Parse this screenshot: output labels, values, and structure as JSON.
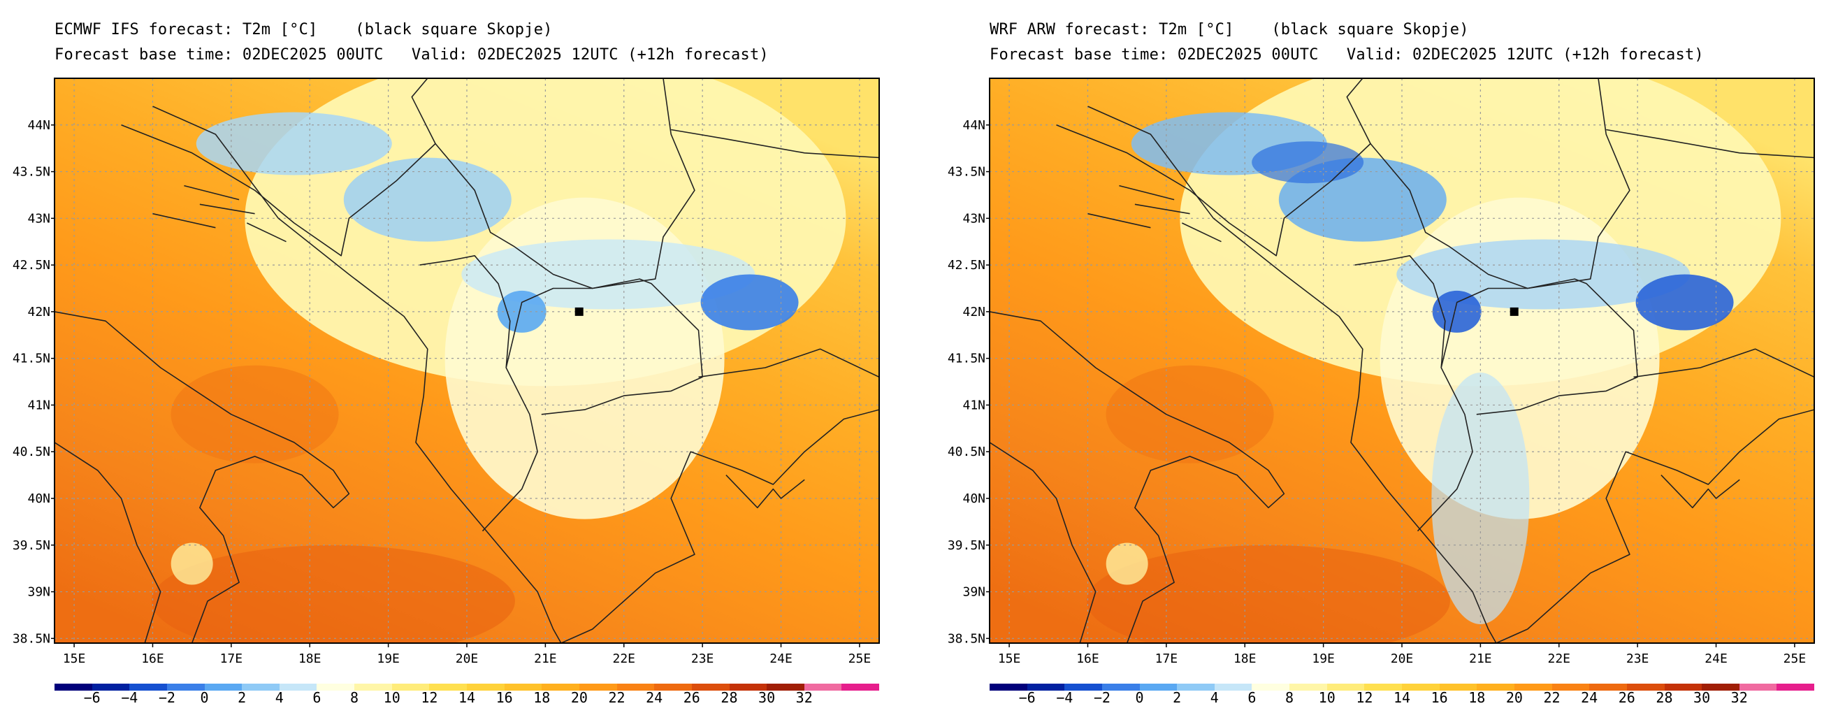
{
  "panels": [
    {
      "id": "ecmwf",
      "title_line1": "ECMWF IFS forecast: T2m [°C]    (black square Skopje)",
      "title_line2": "Forecast base time: 02DEC2025 00UTC   Valid: 02DEC2025 12UTC (+12h forecast)"
    },
    {
      "id": "wrf",
      "title_line1": "WRF ARW forecast: T2m [°C]    (black square Skopje)",
      "title_line2": "Forecast base time: 02DEC2025 00UTC   Valid: 02DEC2025 12UTC (+12h forecast)"
    }
  ],
  "map": {
    "lon_range": [
      14.75,
      25.25
    ],
    "lat_range": [
      38.45,
      44.5
    ],
    "lon_ticks": [
      15,
      16,
      17,
      18,
      19,
      20,
      21,
      22,
      23,
      24,
      25
    ],
    "lon_tick_labels": [
      "15E",
      "16E",
      "17E",
      "18E",
      "19E",
      "20E",
      "21E",
      "22E",
      "23E",
      "24E",
      "25E"
    ],
    "lat_ticks": [
      38.5,
      39,
      39.5,
      40,
      40.5,
      41,
      41.5,
      42,
      42.5,
      43,
      43.5,
      44
    ],
    "lat_tick_labels": [
      "38.5N",
      "39N",
      "39.5N",
      "40N",
      "40.5N",
      "41N",
      "41.5N",
      "42N",
      "42.5N",
      "43N",
      "43.5N",
      "44N"
    ],
    "marker": {
      "name": "Skopje",
      "lon": 21.43,
      "lat": 42.0
    }
  },
  "colorbar": {
    "colors": [
      "#00007a",
      "#0020a0",
      "#1550d0",
      "#3a7fe8",
      "#5aa8f2",
      "#8fcaf6",
      "#c6e6f8",
      "#ffffe0",
      "#fff6a8",
      "#ffec7a",
      "#ffe050",
      "#ffd23a",
      "#ffc22a",
      "#ffb01e",
      "#ff9a18",
      "#f98214",
      "#ee6a10",
      "#dc4e0c",
      "#c43208",
      "#a01e06",
      "#f06aa0",
      "#e61e8c"
    ],
    "labels": [
      "−6",
      "−4",
      "−2",
      "0",
      "2",
      "4",
      "6",
      "8",
      "10",
      "12",
      "14",
      "16",
      "18",
      "20",
      "22",
      "24",
      "26",
      "28",
      "30",
      "32"
    ]
  }
}
